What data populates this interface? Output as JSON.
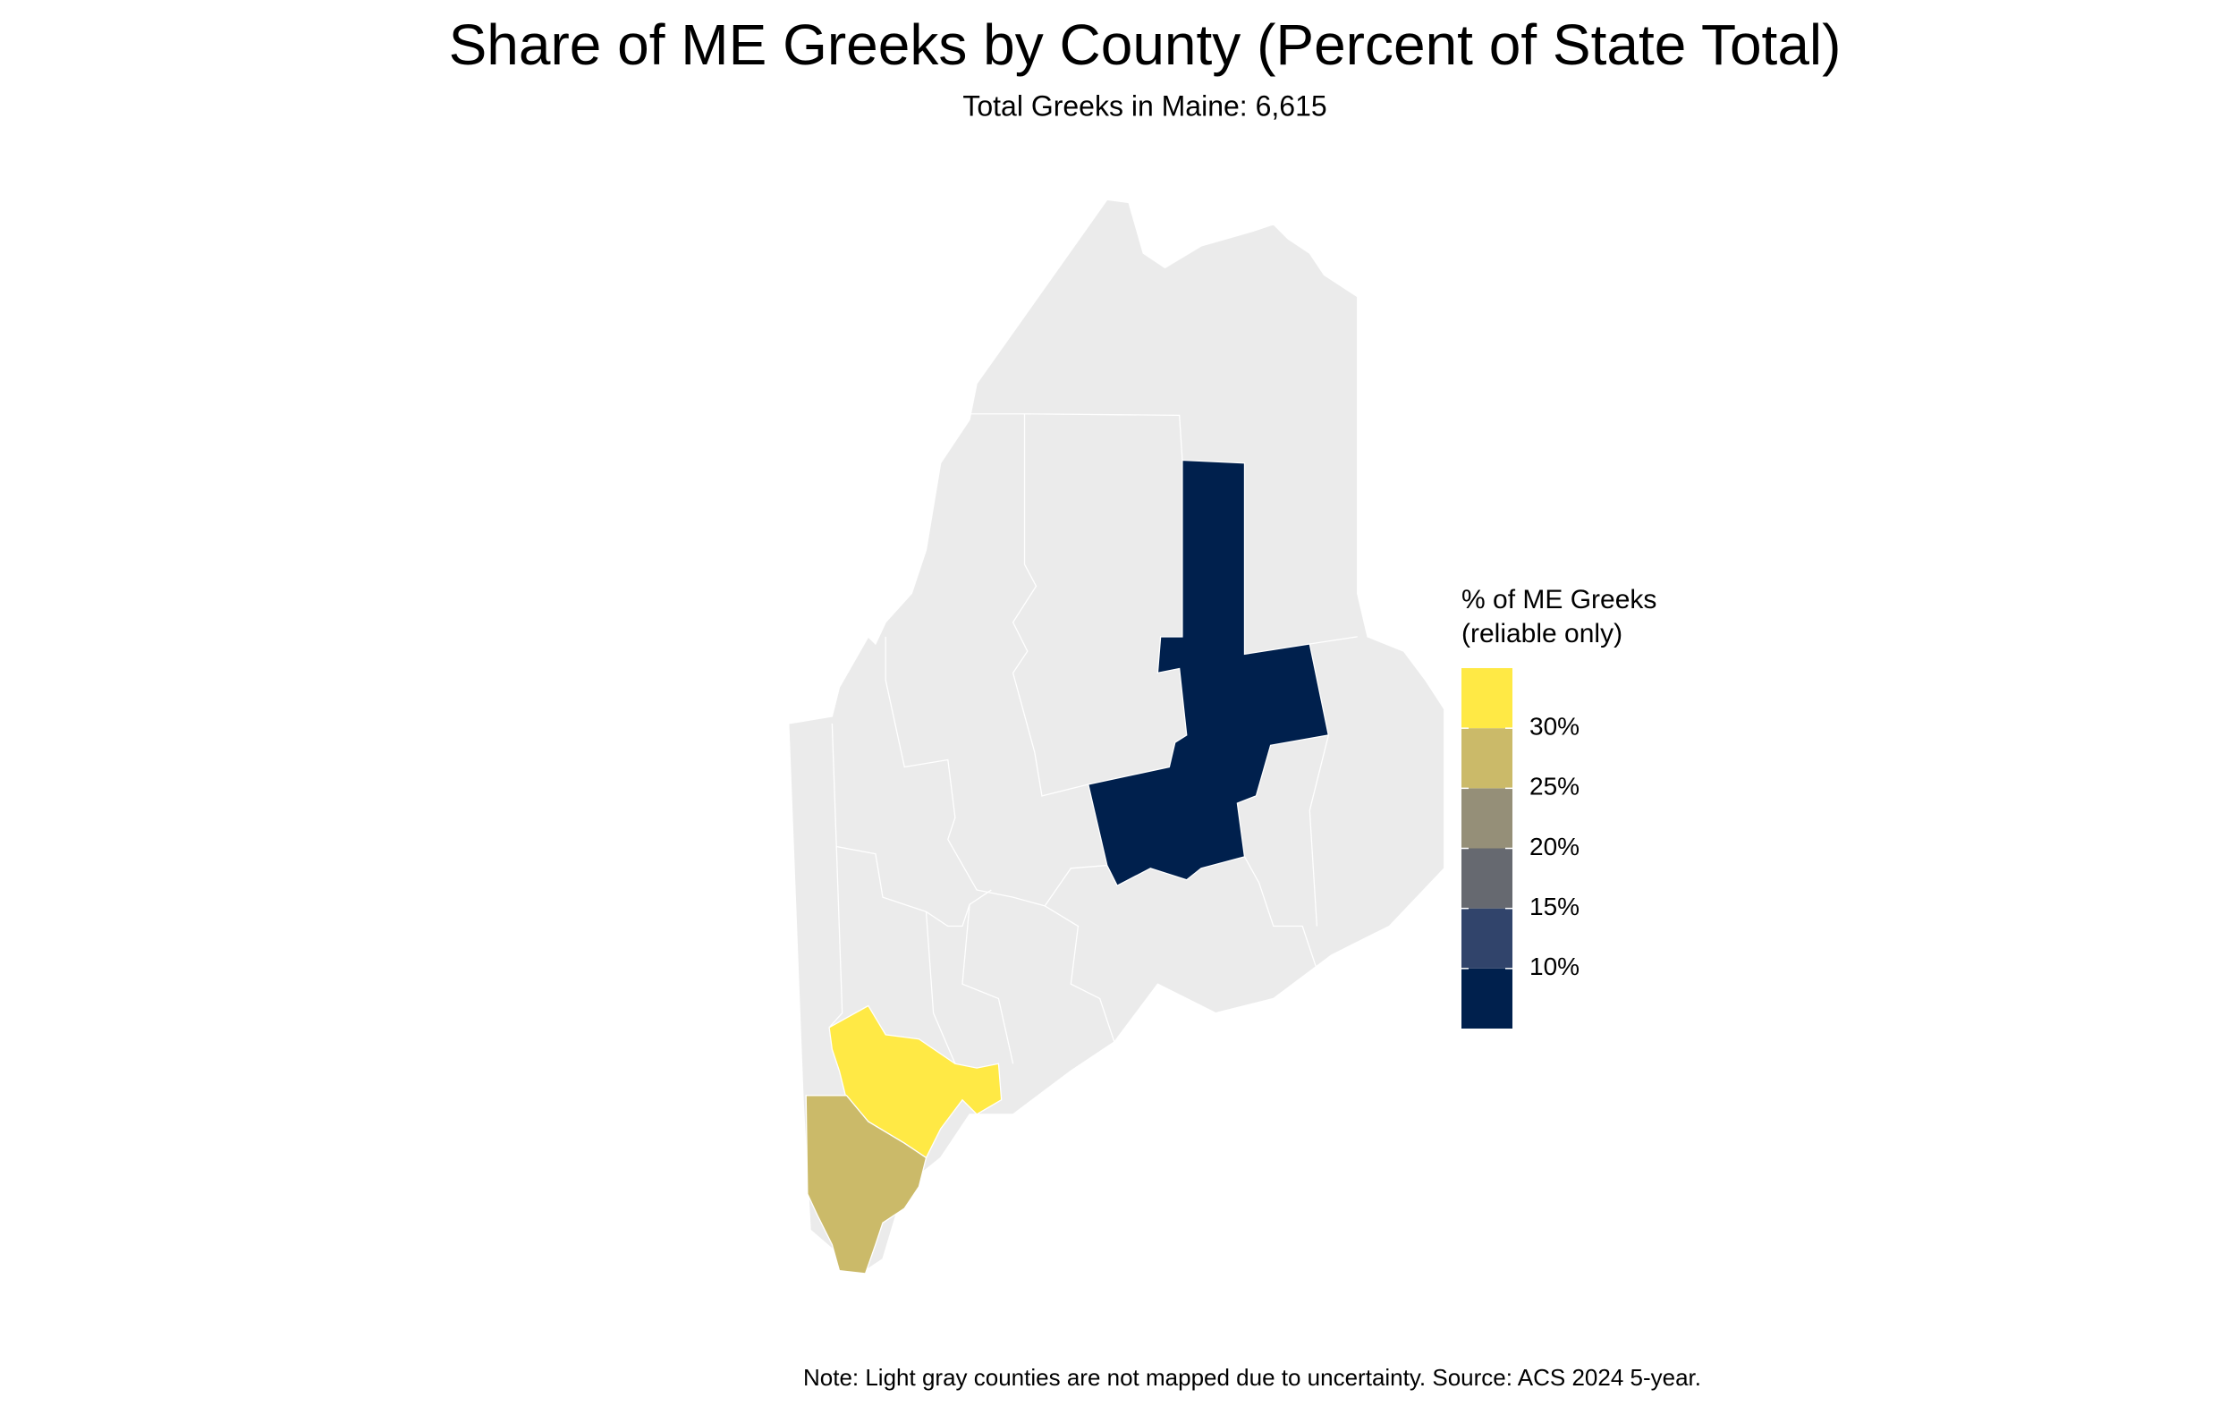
{
  "chart_data": {
    "type": "choropleth",
    "title": "Share of ME Greeks by County (Percent of State Total)",
    "subtitle": "Total Greeks in Maine: 6,615",
    "note": "Note: Light gray counties are not mapped due to uncertainty. Source: ACS 2024 5-year.",
    "legend_title": [
      "% of ME Greeks",
      "(reliable only)"
    ],
    "regions": [
      {
        "value": 33
      },
      {
        "value": 27
      },
      {
        "value": 8
      }
    ],
    "colorbar": {
      "lim": [
        5,
        35
      ],
      "ticks": [
        {
          "value": 10,
          "label": "10%"
        },
        {
          "value": 15,
          "label": "15%"
        },
        {
          "value": 20,
          "label": "20%"
        },
        {
          "value": 25,
          "label": "25%"
        },
        {
          "value": 30,
          "label": "30%"
        }
      ],
      "colors": [
        "#00204d",
        "#31446b",
        "#666970",
        "#958f78",
        "#cbba69",
        "#ffe945"
      ]
    },
    "missing_color": "#ebebeb"
  }
}
